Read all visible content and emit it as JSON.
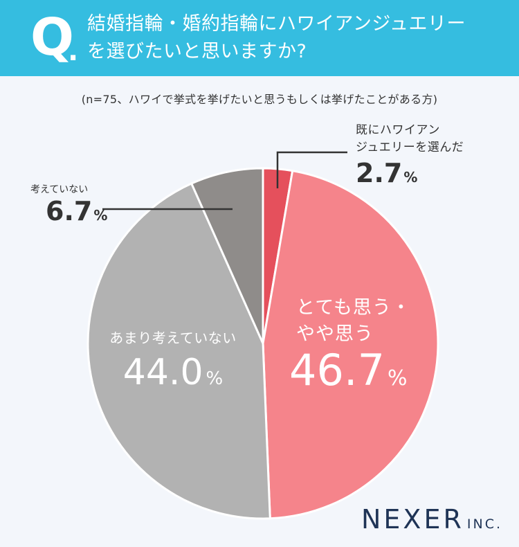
{
  "header": {
    "q_mark": "Q",
    "q_dot": ".",
    "question_line1": "結婚指輪・婚約指輪にハワイアンジュエリー",
    "question_line2": "を選びたいと思いますか?",
    "background_color": "#35bde0"
  },
  "note": "(n=75、ハワイで挙式を挙げたいと思うもしくは挙げたことがある方)",
  "chart_data": {
    "type": "pie",
    "start": "12 o'clock, clockwise",
    "slices": [
      {
        "label": "既にハワイアンジュエリーを選んだ",
        "label_line1": "既にハワイアン",
        "label_line2": "ジュエリーを選んだ",
        "value": 2.7,
        "value_text": "2.7",
        "color": "#e5505c"
      },
      {
        "label": "とても思う・やや思う",
        "label_line1": "とても思う・",
        "label_line2": "やや思う",
        "value": 46.7,
        "value_text": "46.7",
        "color": "#f5848b"
      },
      {
        "label": "あまり考えていない",
        "value": 44.0,
        "value_text": "44.0",
        "color": "#b2b2b2"
      },
      {
        "label": "考えていない",
        "value": 6.7,
        "value_text": "6.7",
        "color": "#8f8c8a"
      }
    ],
    "unit": "%"
  },
  "logo": {
    "main": "NEXER",
    "sub": "INC."
  }
}
